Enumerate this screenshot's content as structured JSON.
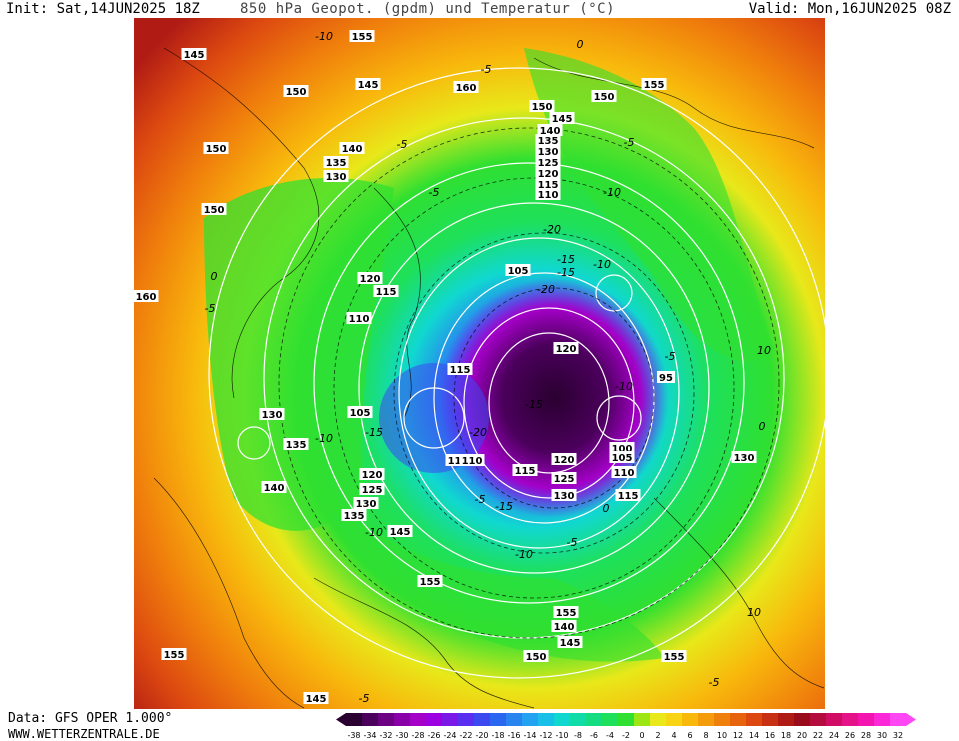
{
  "header": {
    "init": "Init: Sat,14JUN2025 18Z",
    "title": "850 hPa Geopot. (gpdm) und Temperatur (°C)",
    "valid": "Valid: Mon,16JUN2025 08Z"
  },
  "footer": {
    "data_source": "Data: GFS OPER 1.000°",
    "website": "WWW.WETTERZENTRALE.DE"
  },
  "map": {
    "projection": "polar stereographic, northern hemisphere",
    "geopotential_labels": [
      "145",
      "155",
      "150",
      "145",
      "160",
      "150",
      "155",
      "150",
      "145",
      "140",
      "135",
      "130",
      "125",
      "120",
      "115",
      "110",
      "140",
      "135",
      "130",
      "150",
      "160",
      "120",
      "115",
      "110",
      "105",
      "115",
      "120",
      "120",
      "115",
      "105",
      "130",
      "135",
      "140",
      "120",
      "125",
      "130",
      "135",
      "145",
      "110",
      "115",
      "120",
      "125",
      "130",
      "95",
      "100",
      "105",
      "110",
      "115",
      "130",
      "155",
      "155",
      "155",
      "145",
      "150",
      "140",
      "145",
      "155",
      "150"
    ],
    "temperature_labels": [
      "-10",
      "0",
      "-5",
      "-5",
      "-5",
      "-5",
      "-10",
      "-15",
      "-20",
      "-15",
      "-10",
      "-5",
      "10",
      "-10",
      "0",
      "-15",
      "-20",
      "-10",
      "-15",
      "-5",
      "-10",
      "0",
      "-5",
      "-10",
      "-5",
      "10",
      "-5",
      "0",
      "-5",
      "-20",
      "-15"
    ]
  },
  "legend": {
    "unit": "°C",
    "ticks": [
      "-38",
      "-34",
      "-32",
      "-30",
      "-28",
      "-26",
      "-24",
      "-22",
      "-20",
      "-18",
      "-16",
      "-14",
      "-12",
      "-10",
      "-8",
      "-6",
      "-4",
      "-2",
      "0",
      "2",
      "4",
      "6",
      "8",
      "10",
      "12",
      "14",
      "16",
      "18",
      "20",
      "22",
      "24",
      "26",
      "28",
      "30",
      "32"
    ],
    "colors": [
      "#2a0030",
      "#4b005c",
      "#6d0082",
      "#8a00a8",
      "#a400c8",
      "#9c00e0",
      "#7a18e8",
      "#5a2ef0",
      "#3c48f0",
      "#2a66f0",
      "#2a84f0",
      "#22a2f0",
      "#18c0e8",
      "#10d8d0",
      "#10dca8",
      "#14dc80",
      "#1ee05a",
      "#30e030",
      "#9ce614",
      "#e8e81a",
      "#f8d414",
      "#f8b80c",
      "#f49c0c",
      "#f0800c",
      "#e8640c",
      "#dc4810",
      "#c83014",
      "#b01c14",
      "#9a0c1c",
      "#b40c3c",
      "#d00c64",
      "#e41488",
      "#f414b0",
      "#fc28d8",
      "#ff48f4"
    ]
  }
}
